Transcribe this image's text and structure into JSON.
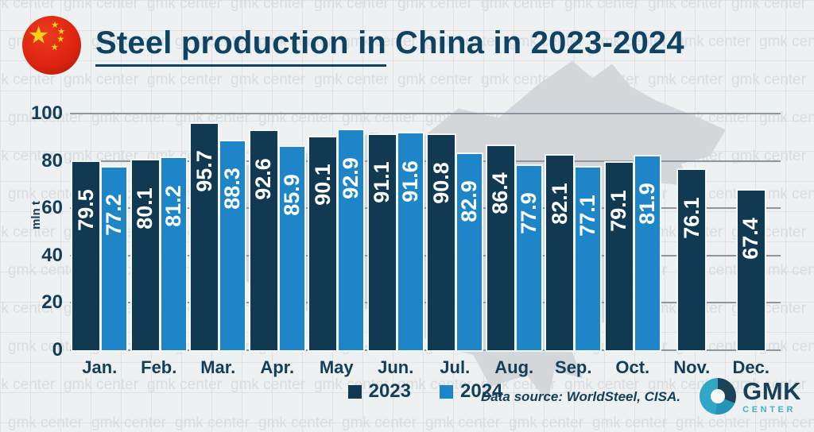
{
  "header": {
    "title_underlined": "Steel production in",
    "title_rest": "China in 2023-2024",
    "flag_icon": "china-flag-icon"
  },
  "chart_data": {
    "type": "bar",
    "title": "Steel production in China in 2023-2024",
    "xlabel": "",
    "ylabel": "mln t",
    "ylim": [
      0,
      100
    ],
    "yticks": [
      0,
      20,
      40,
      60,
      80,
      100
    ],
    "grid": true,
    "legend_position": "bottom",
    "categories": [
      "Jan.",
      "Feb.",
      "Mar.",
      "Apr.",
      "May",
      "Jun.",
      "Jul.",
      "Aug.",
      "Sep.",
      "Oct.",
      "Nov.",
      "Dec."
    ],
    "series": [
      {
        "name": "2023",
        "color": "#113a52",
        "values": [
          79.5,
          80.1,
          95.7,
          92.6,
          90.1,
          91.1,
          90.8,
          86.4,
          82.1,
          79.1,
          76.1,
          67.4
        ]
      },
      {
        "name": "2024",
        "color": "#1e86c8",
        "values": [
          77.2,
          81.2,
          88.3,
          85.9,
          92.9,
          91.6,
          82.9,
          77.9,
          77.1,
          81.9,
          null,
          null
        ]
      }
    ]
  },
  "legend": {
    "items": [
      {
        "label": "2023",
        "color": "#113a52"
      },
      {
        "label": "2024",
        "color": "#1e86c8"
      }
    ]
  },
  "footer": {
    "source_text": "Data source: WorldSteel, CISA."
  },
  "logo": {
    "title": "GMK",
    "subtitle": "CENTER",
    "icon": "gmk-donut-icon"
  },
  "watermark": {
    "text": "gmk center"
  },
  "colors": {
    "bar_2023": "#113a52",
    "bar_2024": "#1e86c8",
    "text_navy": "#0e4363",
    "gridline": "#8d969d",
    "background": "#eef1f2",
    "map_silhouette": "#d3d7d9",
    "value_label": "#ffffff"
  }
}
